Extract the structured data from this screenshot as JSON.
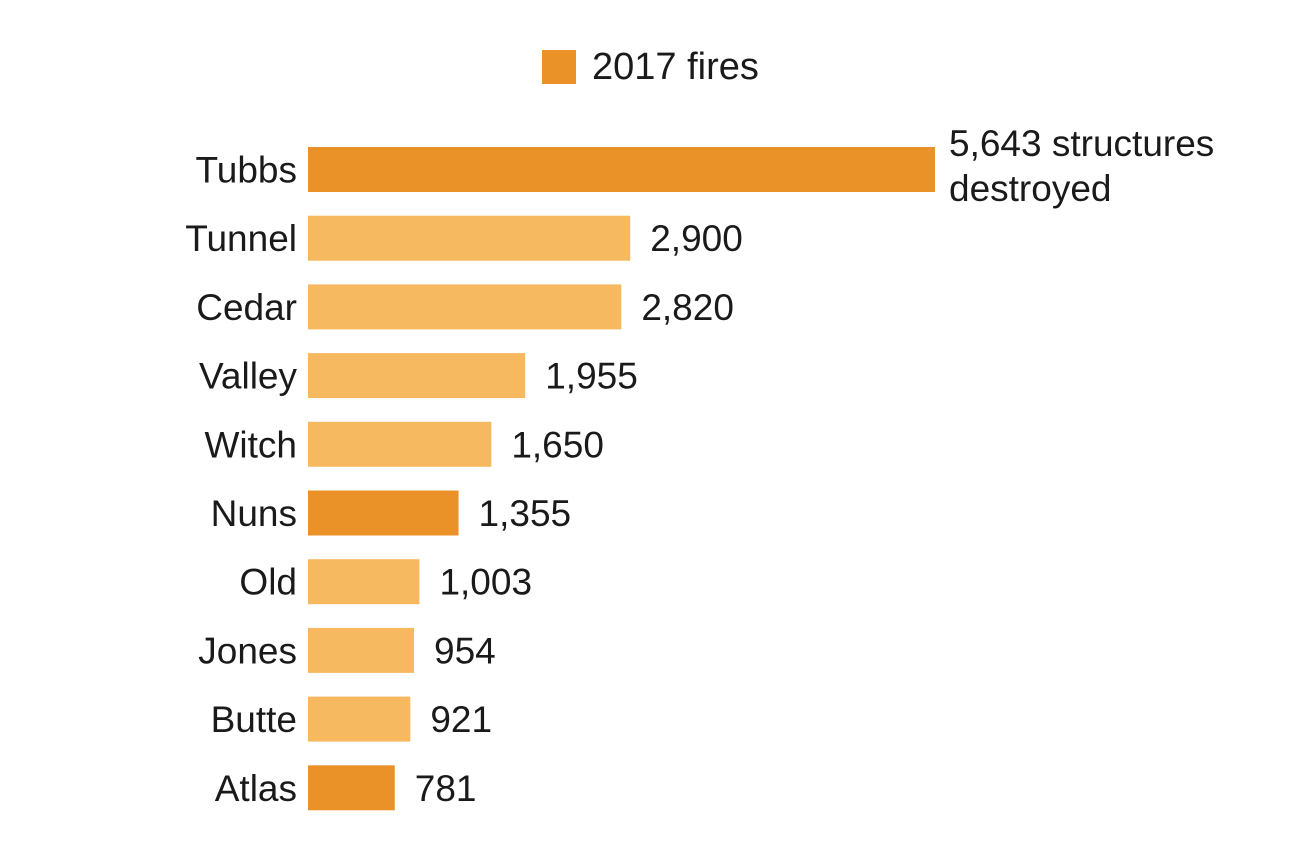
{
  "chart_data": {
    "type": "bar",
    "orientation": "horizontal",
    "legend": {
      "label": "2017 fires",
      "color": "#ea9228",
      "placement": "top-center"
    },
    "colors": {
      "highlight": "#ea9228",
      "default": "#f6b960"
    },
    "categories": [
      "Tubbs",
      "Tunnel",
      "Cedar",
      "Valley",
      "Witch",
      "Nuns",
      "Old",
      "Jones",
      "Butte",
      "Atlas"
    ],
    "values": [
      5643,
      2900,
      2820,
      1955,
      1650,
      1355,
      1003,
      954,
      921,
      781
    ],
    "is_2017": [
      true,
      false,
      false,
      false,
      false,
      true,
      false,
      false,
      false,
      true
    ],
    "data_labels": [
      [
        "5,643 structures",
        "destroyed"
      ],
      [
        "2,900"
      ],
      [
        "2,820"
      ],
      [
        "1,955"
      ],
      [
        "1,650"
      ],
      [
        "1,355"
      ],
      [
        "1,003"
      ],
      [
        "954"
      ],
      [
        "921"
      ],
      [
        "781"
      ]
    ],
    "xlim": [
      0,
      5643
    ],
    "grid": false,
    "axes_visible": false
  }
}
